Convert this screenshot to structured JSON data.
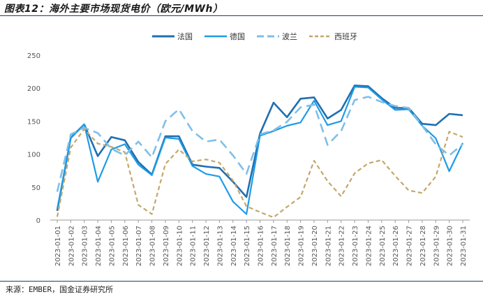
{
  "title": "图表12：海外主要市场现货电价（欧元/MWh）",
  "source": "来源：EMBER，国金证券研究所",
  "chart_data": {
    "type": "line",
    "categories": [
      "2023-01-01",
      "2023-01-02",
      "2023-01-03",
      "2023-01-04",
      "2023-01-05",
      "2023-01-06",
      "2023-01-07",
      "2023-01-08",
      "2023-01-09",
      "2023-01-10",
      "2023-01-11",
      "2023-01-12",
      "2023-01-13",
      "2023-01-14",
      "2023-01-15",
      "2023-01-16",
      "2023-01-17",
      "2023-01-18",
      "2023-01-19",
      "2023-01-20",
      "2023-01-21",
      "2023-01-22",
      "2023-01-23",
      "2023-01-24",
      "2023-01-25",
      "2023-01-26",
      "2023-01-27",
      "2023-01-28",
      "2023-01-29",
      "2023-01-30",
      "2023-01-31"
    ],
    "ylim": [
      0,
      250
    ],
    "yticks": [
      0,
      50,
      100,
      150,
      200,
      250
    ],
    "grid": false,
    "legend": "top-center",
    "series": [
      {
        "name": "法国",
        "color": "#1f6fb0",
        "dash": "solid",
        "width": 2.6,
        "values": [
          14,
          125,
          145,
          97,
          126,
          121,
          88,
          69,
          127,
          127,
          84,
          81,
          79,
          58,
          35,
          131,
          178,
          156,
          184,
          186,
          154,
          167,
          204,
          203,
          185,
          170,
          170,
          146,
          144,
          161,
          159
        ]
      },
      {
        "name": "德国",
        "color": "#1e9be6",
        "dash": "solid",
        "width": 2.2,
        "values": [
          17,
          124,
          145,
          58,
          107,
          115,
          84,
          68,
          125,
          123,
          82,
          70,
          66,
          28,
          9,
          128,
          135,
          143,
          148,
          181,
          144,
          150,
          202,
          201,
          183,
          167,
          168,
          143,
          124,
          74,
          117
        ]
      },
      {
        "name": "波兰",
        "color": "#7fbfe8",
        "dash": "longdash",
        "width": 2.6,
        "values": [
          43,
          130,
          140,
          132,
          108,
          98,
          119,
          95,
          150,
          168,
          135,
          119,
          122,
          98,
          70,
          130,
          136,
          149,
          171,
          175,
          114,
          135,
          182,
          187,
          179,
          173,
          170,
          143,
          115,
          98,
          115
        ]
      },
      {
        "name": "西班牙",
        "color": "#c4a76b",
        "dash": "dash",
        "width": 2.2,
        "values": [
          5,
          110,
          138,
          116,
          111,
          103,
          23,
          9,
          85,
          107,
          89,
          92,
          87,
          60,
          21,
          12,
          4,
          20,
          35,
          90,
          59,
          36,
          71,
          86,
          91,
          67,
          45,
          41,
          66,
          134,
          126
        ]
      }
    ]
  }
}
